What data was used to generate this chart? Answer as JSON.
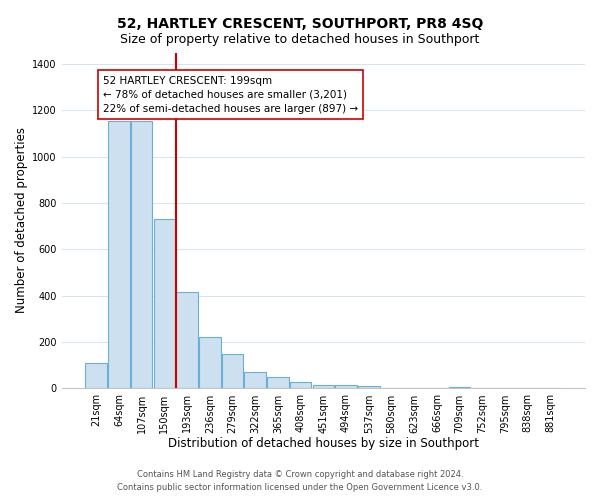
{
  "title": "52, HARTLEY CRESCENT, SOUTHPORT, PR8 4SQ",
  "subtitle": "Size of property relative to detached houses in Southport",
  "xlabel": "Distribution of detached houses by size in Southport",
  "ylabel": "Number of detached properties",
  "bar_labels": [
    "21sqm",
    "64sqm",
    "107sqm",
    "150sqm",
    "193sqm",
    "236sqm",
    "279sqm",
    "322sqm",
    "365sqm",
    "408sqm",
    "451sqm",
    "494sqm",
    "537sqm",
    "580sqm",
    "623sqm",
    "666sqm",
    "709sqm",
    "752sqm",
    "795sqm",
    "838sqm",
    "881sqm"
  ],
  "bar_values": [
    110,
    1155,
    1155,
    730,
    418,
    222,
    148,
    73,
    50,
    30,
    15,
    15,
    10,
    0,
    0,
    0,
    5,
    0,
    0,
    0,
    0
  ],
  "bar_color": "#cce0f0",
  "bar_edge_color": "#6aafd6",
  "reference_line_color": "#cc0000",
  "annotation_title": "52 HARTLEY CRESCENT: 199sqm",
  "annotation_line1": "← 78% of detached houses are smaller (3,201)",
  "annotation_line2": "22% of semi-detached houses are larger (897) →",
  "annotation_box_color": "white",
  "annotation_box_edge": "#cc0000",
  "ylim": [
    0,
    1450
  ],
  "yticks": [
    0,
    200,
    400,
    600,
    800,
    1000,
    1200,
    1400
  ],
  "footer_line1": "Contains HM Land Registry data © Crown copyright and database right 2024.",
  "footer_line2": "Contains public sector information licensed under the Open Government Licence v3.0.",
  "background_color": "#ffffff",
  "grid_color": "#d8e4ee",
  "title_fontsize": 10,
  "subtitle_fontsize": 9,
  "axis_label_fontsize": 8.5,
  "tick_fontsize": 7,
  "footer_fontsize": 6,
  "annotation_fontsize": 7.5,
  "annotation_title_fontsize": 8
}
